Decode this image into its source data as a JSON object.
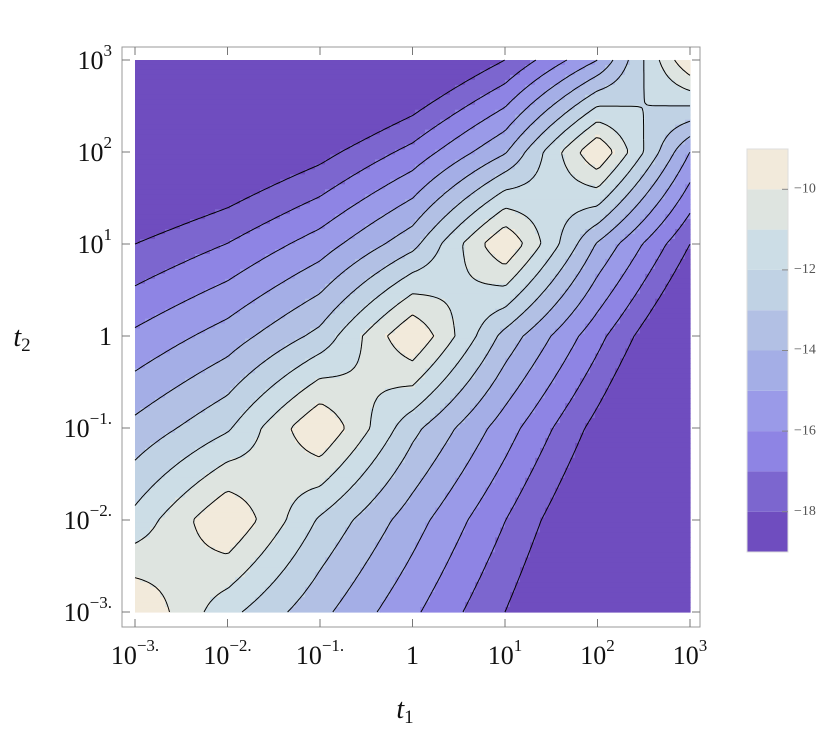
{
  "chart_data": {
    "type": "contour",
    "xlabel": "t",
    "xlabel_subscript": "1",
    "ylabel": "t",
    "ylabel_subscript": "2",
    "log_x": true,
    "log_y": true,
    "xlim": [
      0.001,
      1000
    ],
    "ylim": [
      0.001,
      1000
    ],
    "xticks": [
      {
        "value": 0.001,
        "label": "10",
        "exponent": "−3."
      },
      {
        "value": 0.01,
        "label": "10",
        "exponent": "−2."
      },
      {
        "value": 0.1,
        "label": "10",
        "exponent": "−1."
      },
      1,
      {
        "value": 10,
        "label": "10",
        "exponent": "1"
      },
      {
        "value": 100,
        "label": "10",
        "exponent": "2"
      },
      {
        "value": 1000,
        "label": "10",
        "exponent": "3"
      }
    ],
    "yticks": [
      {
        "value": 0.001,
        "label": "10",
        "exponent": "−3."
      },
      {
        "value": 0.01,
        "label": "10",
        "exponent": "−2."
      },
      {
        "value": 0.1,
        "label": "10",
        "exponent": "−1."
      },
      1,
      {
        "value": 10,
        "label": "10",
        "exponent": "1"
      },
      {
        "value": 100,
        "label": "10",
        "exponent": "2"
      },
      {
        "value": 1000,
        "label": "10",
        "exponent": "3"
      }
    ],
    "x_grid": [
      0.001,
      0.01,
      0.1,
      1,
      10,
      100,
      1000
    ],
    "y_grid": [
      0.001,
      0.01,
      0.1,
      1,
      10,
      100,
      1000
    ],
    "z": [
      [
        -9,
        -11.68,
        -13.71,
        -15.8,
        -18,
        -20.42,
        -23.06
      ],
      [
        -11.68,
        -9,
        -12.15,
        -14.54,
        -16.98,
        -19.58,
        -22.42
      ],
      [
        -13.71,
        -12.15,
        -9,
        -12.7,
        -15.52,
        -18.39,
        -21.46
      ],
      [
        -15.8,
        -14.54,
        -12.7,
        -9,
        -13.35,
        -16.67,
        -20.03
      ],
      [
        -18,
        -16.98,
        -15.52,
        -13.35,
        -9,
        -14.11,
        -18
      ],
      [
        -20.42,
        -19.58,
        -18.39,
        -16.67,
        -14.11,
        -9,
        -15.01
      ],
      [
        -23.06,
        -22.42,
        -21.46,
        -20.03,
        -18,
        -15.01,
        -9
      ]
    ],
    "levels": [
      -19,
      -18,
      -17,
      -16,
      -15,
      -14,
      -13,
      -12,
      -11,
      -10,
      -9
    ],
    "colors": [
      "#6f4dbf",
      "#7c66cf",
      "#8e84e4",
      "#9a9ae8",
      "#a4aee6",
      "#b2c0e4",
      "#c0d2e4",
      "#ccdde6",
      "#dee4e0",
      "#f2eadb"
    ],
    "contour_lines": true,
    "clim": [
      -19,
      -9
    ],
    "cticks": [
      {
        "value": -10,
        "label": "−10"
      },
      {
        "value": -12,
        "label": "−12"
      },
      {
        "value": -14,
        "label": "−14"
      },
      {
        "value": -16,
        "label": "−16"
      },
      {
        "value": -18,
        "label": "−18"
      }
    ]
  }
}
